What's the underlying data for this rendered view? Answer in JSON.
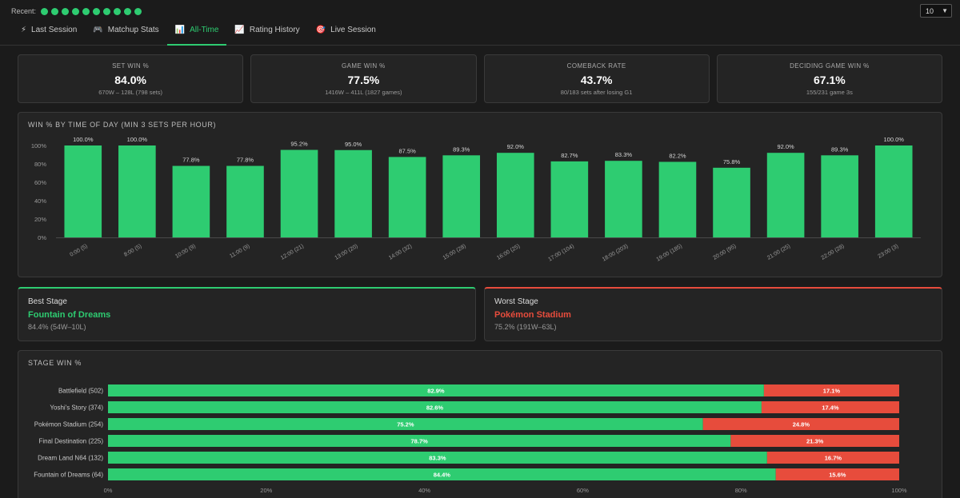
{
  "recent": {
    "label": "Recent:",
    "count": 10,
    "select_value": "10"
  },
  "tabs": [
    {
      "label": "Last Session",
      "icon": "lightning-icon",
      "glyph": "⚡",
      "active": false
    },
    {
      "label": "Matchup Stats",
      "icon": "gamepad-icon",
      "glyph": "🎮",
      "active": false
    },
    {
      "label": "All-Time",
      "icon": "chart-icon",
      "glyph": "📊",
      "active": true
    },
    {
      "label": "Rating History",
      "icon": "trend-icon",
      "glyph": "📈",
      "active": false
    },
    {
      "label": "Live Session",
      "icon": "target-icon",
      "glyph": "🎯",
      "active": false
    }
  ],
  "kpis": [
    {
      "label": "SET WIN %",
      "value": "84.0%",
      "sub": "670W – 128L (798 sets)"
    },
    {
      "label": "GAME WIN %",
      "value": "77.5%",
      "sub": "1416W – 411L (1827 games)"
    },
    {
      "label": "COMEBACK RATE",
      "value": "43.7%",
      "sub": "80/183 sets after losing G1"
    },
    {
      "label": "DECIDING GAME WIN %",
      "value": "67.1%",
      "sub": "155/231 game 3s"
    }
  ],
  "best_stage": {
    "label": "Best Stage",
    "name": "Fountain of Dreams",
    "detail": "84.4% (54W–10L)"
  },
  "worst_stage": {
    "label": "Worst Stage",
    "name": "Pokémon Stadium",
    "detail": "75.2% (191W–63L)"
  },
  "colors": {
    "win": "#2ecc71",
    "loss": "#e74c3c",
    "panel": "#242424",
    "grid": "#3a3a3a"
  },
  "chart_data": [
    {
      "type": "bar",
      "title": "WIN % BY TIME OF DAY (MIN 3 SETS PER HOUR)",
      "categories": [
        "0:00 (5)",
        "8:00 (5)",
        "10:00 (9)",
        "11:00 (9)",
        "12:00 (21)",
        "13:00 (20)",
        "14:00 (32)",
        "15:00 (28)",
        "16:00 (25)",
        "17:00 (104)",
        "18:00 (203)",
        "19:00 (185)",
        "20:00 (95)",
        "21:00 (25)",
        "22:00 (28)",
        "23:00 (3)"
      ],
      "values": [
        100.0,
        100.0,
        77.8,
        77.8,
        95.2,
        95.0,
        87.5,
        89.3,
        92.0,
        82.7,
        83.3,
        82.2,
        75.8,
        92.0,
        89.3,
        100.0
      ],
      "data_labels": [
        "100.0%",
        "100.0%",
        "77.8%",
        "77.8%",
        "95.2%",
        "95.0%",
        "87.5%",
        "89.3%",
        "92.0%",
        "82.7%",
        "83.3%",
        "82.2%",
        "75.8%",
        "92.0%",
        "89.3%",
        "100.0%"
      ],
      "yticks": [
        "0%",
        "20%",
        "40%",
        "60%",
        "80%",
        "100%"
      ],
      "ylim": [
        0,
        100
      ],
      "grid": false
    },
    {
      "type": "bar",
      "orientation": "horizontal",
      "stacked": true,
      "title": "STAGE WIN %",
      "categories": [
        "Battlefield (502)",
        "Yoshi's Story (374)",
        "Pokémon Stadium (254)",
        "Final Destination (225)",
        "Dream Land N64 (132)",
        "Fountain of Dreams (64)"
      ],
      "series": [
        {
          "values": [
            82.9,
            82.6,
            75.2,
            78.7,
            83.3,
            84.4
          ],
          "labels": [
            "82.9%",
            "82.6%",
            "75.2%",
            "78.7%",
            "83.3%",
            "84.4%"
          ]
        },
        {
          "values": [
            17.1,
            17.4,
            24.8,
            21.3,
            16.7,
            15.6
          ],
          "labels": [
            "17.1%",
            "17.4%",
            "24.8%",
            "21.3%",
            "16.7%",
            "15.6%"
          ]
        }
      ],
      "xticks": [
        "0%",
        "20%",
        "40%",
        "60%",
        "80%",
        "100%"
      ],
      "xlim": [
        0,
        100
      ]
    }
  ]
}
